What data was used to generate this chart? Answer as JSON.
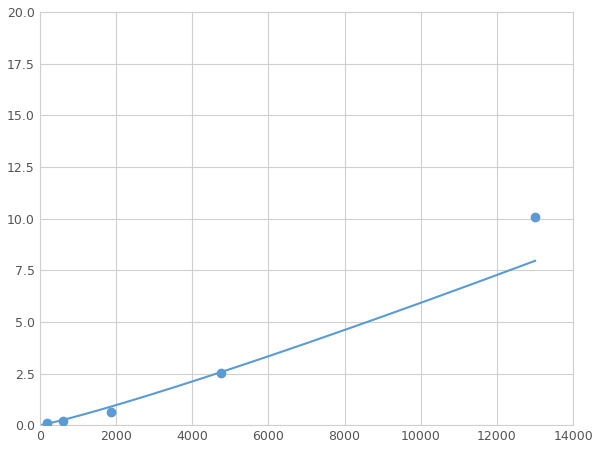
{
  "marker_x": [
    200,
    600,
    1875,
    4750,
    13000
  ],
  "marker_y": [
    0.1,
    0.2,
    0.65,
    2.55,
    10.1
  ],
  "line_color": "#5b9bd5",
  "marker_color": "#5b9bd5",
  "xlim": [
    0,
    14000
  ],
  "ylim": [
    0,
    20.0
  ],
  "xticks": [
    0,
    2000,
    4000,
    6000,
    8000,
    10000,
    12000,
    14000
  ],
  "yticks": [
    0.0,
    2.5,
    5.0,
    7.5,
    10.0,
    12.5,
    15.0,
    17.5,
    20.0
  ],
  "grid": true,
  "background_color": "#ffffff"
}
